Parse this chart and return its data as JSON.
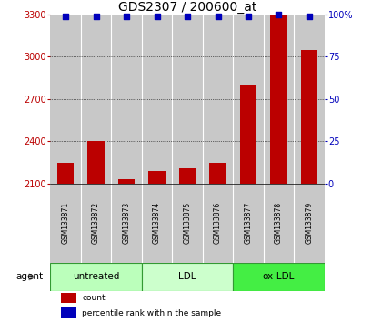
{
  "title": "GDS2307 / 200600_at",
  "samples": [
    "GSM133871",
    "GSM133872",
    "GSM133873",
    "GSM133874",
    "GSM133875",
    "GSM133876",
    "GSM133877",
    "GSM133878",
    "GSM133879"
  ],
  "counts": [
    2250,
    2400,
    2130,
    2190,
    2210,
    2250,
    2800,
    3300,
    3050
  ],
  "percentiles": [
    99,
    99,
    99,
    99,
    99,
    99,
    99,
    100,
    99
  ],
  "ylim_left": [
    2100,
    3300
  ],
  "ylim_right": [
    0,
    100
  ],
  "yticks_left": [
    2100,
    2400,
    2700,
    3000,
    3300
  ],
  "yticks_right": [
    0,
    25,
    50,
    75,
    100
  ],
  "bar_color": "#BB0000",
  "dot_color": "#0000BB",
  "groups": [
    {
      "label": "untreated",
      "start": 0,
      "end": 3,
      "color": "#BBFFBB"
    },
    {
      "label": "LDL",
      "start": 3,
      "end": 6,
      "color": "#CCFFCC"
    },
    {
      "label": "ox-LDL",
      "start": 6,
      "end": 9,
      "color": "#44EE44"
    }
  ],
  "agent_label": "agent",
  "legend_items": [
    {
      "label": "count",
      "color": "#BB0000"
    },
    {
      "label": "percentile rank within the sample",
      "color": "#0000BB"
    }
  ],
  "bg_white": "#FFFFFF",
  "bg_gray": "#C8C8C8",
  "bg_gray_dark": "#B0B0B0",
  "title_fontsize": 10,
  "tick_fontsize": 7,
  "sample_fontsize": 5.5,
  "group_fontsize": 7.5,
  "legend_fontsize": 6.5
}
